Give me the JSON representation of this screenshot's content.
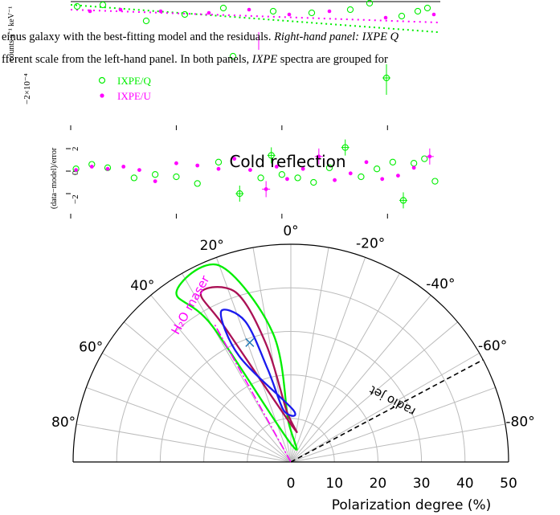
{
  "background_text": {
    "caption_line1": "einus galaxy with the best-fitting model and the residuals.",
    "caption_line1_italic": "Right-hand panel: IXPE Q",
    "caption_line2_a": "fferent scale from the left-hand panel. In both panels,",
    "caption_line2_italic": "IXPE",
    "caption_line2_b": "spectra are grouped for",
    "top_ylabel": "counts s⁻¹ keV⁻¹",
    "top_ytick": "−2×10⁻⁴",
    "legend": [
      {
        "label": "IXPE/Q",
        "color": "#00ee00",
        "marker": "open-circle"
      },
      {
        "label": "IXPE/U",
        "color": "#ff00ff",
        "marker": "filled-dot"
      }
    ],
    "resid_ylabel": "(data−model)/error",
    "resid_yticks": [
      "2",
      "0",
      "−2"
    ]
  },
  "colors": {
    "green": "#00ee00",
    "magenta": "#ff00ff",
    "crimson": "#aa1155",
    "blue": "#1a1aee",
    "marker": "#1f77b4",
    "grid": "#bbbbbb"
  },
  "chart_data": [
    {
      "type": "scatter",
      "panel": "residuals",
      "series": [
        {
          "name": "IXPE/Q",
          "color": "#00ee00",
          "values": [
            [
              2.1,
              0.2
            ],
            [
              2.4,
              0.6
            ],
            [
              2.7,
              0.3
            ],
            [
              3.2,
              -0.6
            ],
            [
              3.6,
              -0.3
            ],
            [
              4.0,
              -0.5
            ],
            [
              4.4,
              -1.1
            ],
            [
              4.8,
              0.8
            ],
            [
              5.2,
              -2.0
            ],
            [
              5.6,
              -0.6
            ],
            [
              5.8,
              1.4
            ],
            [
              6.0,
              -0.3
            ],
            [
              6.3,
              -0.6
            ],
            [
              6.6,
              -1.0
            ],
            [
              6.9,
              0.3
            ],
            [
              7.2,
              2.1
            ],
            [
              7.5,
              -0.5
            ],
            [
              7.8,
              0.2
            ],
            [
              8.1,
              0.8
            ],
            [
              8.3,
              -2.6
            ],
            [
              8.5,
              0.7
            ],
            [
              8.7,
              1.1
            ],
            [
              8.9,
              -0.9
            ]
          ]
        },
        {
          "name": "IXPE/U",
          "color": "#ff00ff",
          "values": [
            [
              2.1,
              0.1
            ],
            [
              2.4,
              0.4
            ],
            [
              2.7,
              0.2
            ],
            [
              3.0,
              0.4
            ],
            [
              3.3,
              0.1
            ],
            [
              3.6,
              -0.9
            ],
            [
              4.0,
              0.7
            ],
            [
              4.4,
              0.5
            ],
            [
              4.8,
              0.2
            ],
            [
              5.1,
              1.1
            ],
            [
              5.4,
              0.1
            ],
            [
              5.7,
              -1.6
            ],
            [
              5.9,
              0.4
            ],
            [
              6.1,
              -0.7
            ],
            [
              6.4,
              0.2
            ],
            [
              6.7,
              1.3
            ],
            [
              7.0,
              -0.8
            ],
            [
              7.3,
              -0.2
            ],
            [
              7.6,
              0.8
            ],
            [
              7.9,
              -0.7
            ],
            [
              8.2,
              -0.4
            ],
            [
              8.5,
              0.3
            ],
            [
              8.8,
              1.3
            ]
          ]
        }
      ]
    },
    {
      "type": "polar-contour",
      "title": "Cold reflection",
      "r_label": "Polarization degree (%)",
      "r_ticks": [
        "0",
        "10",
        "20",
        "30",
        "40",
        "50"
      ],
      "angle_ticks_left": [
        "80°",
        "60°",
        "40°",
        "20°"
      ],
      "angle_ticks_center": "0°",
      "angle_ticks_right": [
        "-20°",
        "-40°",
        "-60°",
        "-80°"
      ],
      "r_range": [
        0,
        50
      ],
      "angle_range_deg": [
        -90,
        90
      ],
      "best_fit": {
        "angle_deg": 19,
        "pd_percent": 29
      },
      "annotations": [
        {
          "label": "H₂O maser",
          "angle_deg": 29,
          "color": "#ff00ff",
          "style": "dash-dot"
        },
        {
          "label": "radio jet",
          "angle_deg": -62,
          "color": "#000000",
          "style": "dashed"
        }
      ],
      "contours": [
        {
          "level": "inner",
          "color": "#1a1aee",
          "points": [
            [
              -2.4,
              12
            ],
            [
              26,
              27
            ],
            [
              25,
              38
            ],
            [
              18,
              34
            ],
            [
              14,
              22
            ],
            [
              8,
              12
            ]
          ]
        },
        {
          "level": "middle",
          "color": "#aa1155",
          "points": [
            [
              -3.6,
              8
            ],
            [
              26,
              34
            ],
            [
              28,
              44
            ],
            [
              18,
              41
            ],
            [
              12,
              28
            ],
            [
              5,
              12
            ]
          ]
        },
        {
          "level": "outer",
          "color": "#00ee00",
          "points": [
            [
              -2,
              4
            ],
            [
              30,
              36
            ],
            [
              34,
              47
            ],
            [
              20,
              48
            ],
            [
              8,
              30
            ],
            [
              4,
              10
            ]
          ]
        }
      ]
    }
  ]
}
